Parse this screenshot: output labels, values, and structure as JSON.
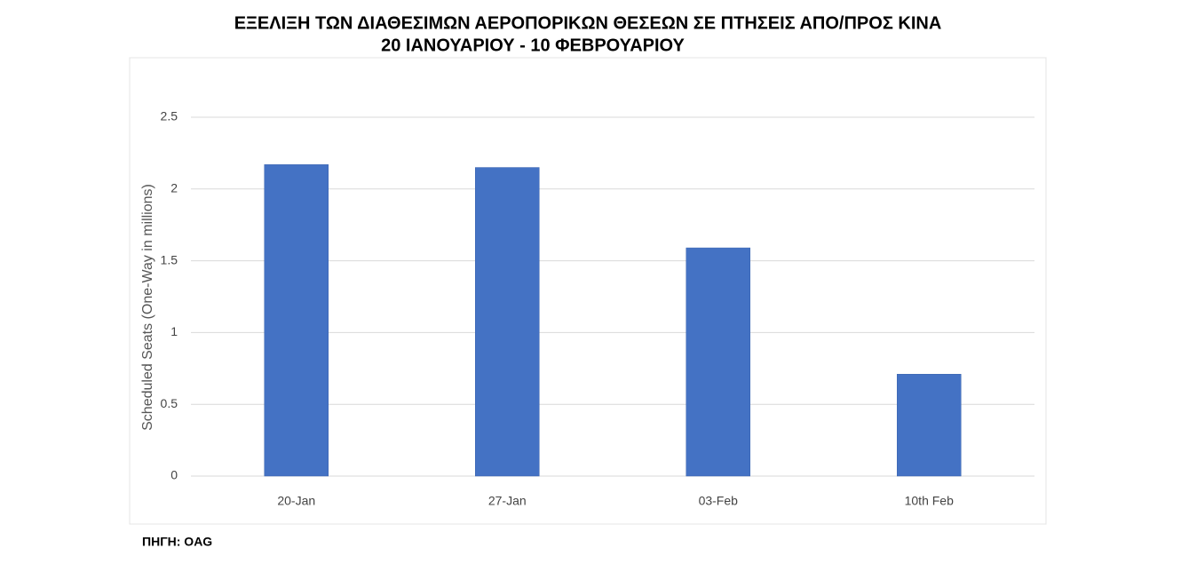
{
  "chart_data": {
    "type": "bar",
    "title": "ΕΞΕΛΙΞΗ ΤΩΝ ΔΙΑΘΕΣΙΜΩΝ ΑΕΡΟΠΟΡΙΚΩΝ ΘΕΣΕΩΝ ΣΕ ΠΤΗΣΕΙΣ ΑΠΟ/ΠΡΟΣ ΚΙΝΑ",
    "subtitle": "20  ΙΑΝΟΥΑΡΙΟΥ - 10 ΦΕΒΡΟΥΑΡΙΟΥ",
    "y_label": "Scheduled Seats (One-Way in millions)",
    "categories": [
      "20-Jan",
      "27-Jan",
      "03-Feb",
      "10th Feb"
    ],
    "values": [
      2.17,
      2.15,
      1.59,
      0.71
    ],
    "color": "#4472c4",
    "ylim": [
      0,
      2.5
    ],
    "yticks": [
      0,
      0.5,
      1,
      1.5,
      2,
      2.5
    ],
    "grid": true,
    "source": "ΠΗΓΗ: OAG"
  }
}
